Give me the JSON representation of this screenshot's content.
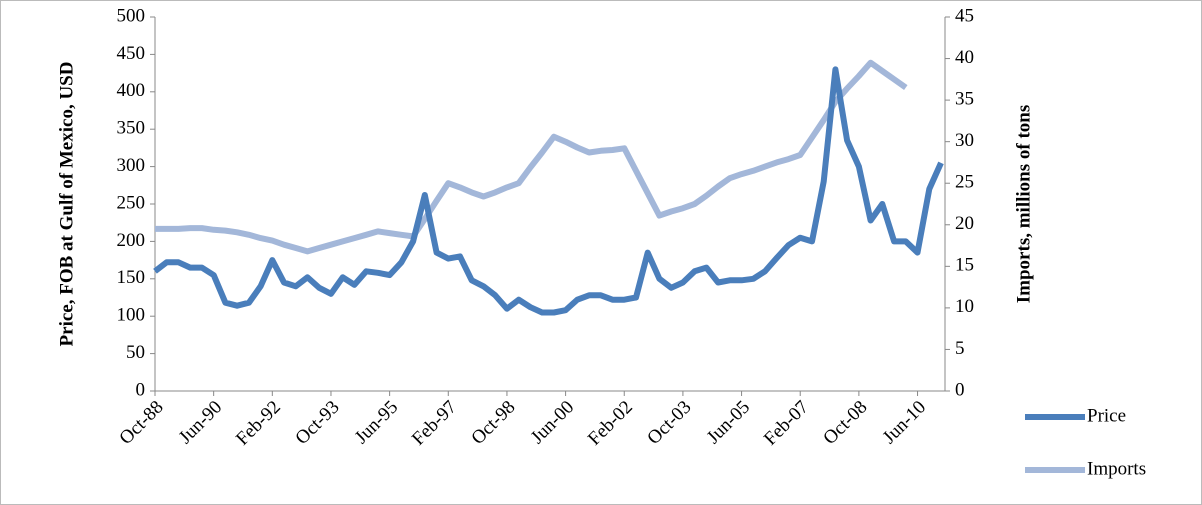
{
  "chart_data": {
    "type": "line",
    "y_label": "Price, FOB at Gulf of Mexico, USD",
    "y2_label": "Imports, millions of tons",
    "categories": [
      "Oct-88",
      null,
      null,
      null,
      null,
      "Jun-90",
      null,
      null,
      null,
      null,
      "Feb-92",
      null,
      null,
      null,
      null,
      "Oct-93",
      null,
      null,
      null,
      null,
      "Jun-95",
      null,
      null,
      null,
      null,
      "Feb-97",
      null,
      null,
      null,
      null,
      "Oct-98",
      null,
      null,
      null,
      null,
      "Jun-00",
      null,
      null,
      null,
      null,
      "Feb-02",
      null,
      null,
      null,
      null,
      "Oct-03",
      null,
      null,
      null,
      null,
      "Jun-05",
      null,
      null,
      null,
      null,
      "Feb-07",
      null,
      null,
      null,
      null,
      "Oct-08",
      null,
      null,
      null,
      null,
      "Jun-10",
      null,
      null
    ],
    "series": [
      {
        "name": "Price",
        "color": "#4a7ebb",
        "values": [
          160,
          172,
          172,
          165,
          165,
          155,
          118,
          114,
          118,
          140,
          175,
          145,
          140,
          152,
          138,
          130,
          152,
          142,
          160,
          158,
          155,
          172,
          200,
          262,
          185,
          177,
          180,
          148,
          140,
          128,
          110,
          122,
          112,
          105,
          105,
          108,
          122,
          128,
          128,
          122,
          122,
          125,
          185,
          150,
          138,
          145,
          160,
          165,
          145,
          148,
          148,
          150,
          160,
          178,
          195,
          205,
          200,
          280,
          430,
          335,
          300,
          228,
          250,
          200,
          200,
          185,
          270,
          305
        ]
      },
      {
        "name": "Imports",
        "color": "#a3b7d9",
        "axis": "y2",
        "values": [
          19.5,
          19.5,
          19.5,
          19.6,
          19.6,
          19.4,
          19.3,
          19.1,
          18.8,
          18.4,
          18.1,
          17.6,
          17.2,
          16.8,
          17.2,
          17.6,
          18.0,
          18.4,
          18.8,
          19.2,
          19.0,
          18.8,
          18.6,
          20.7,
          22.9,
          25.0,
          24.5,
          23.9,
          23.4,
          23.9,
          24.5,
          25.0,
          26.9,
          28.7,
          30.6,
          30.0,
          29.3,
          28.7,
          28.9,
          29.0,
          29.2,
          26.5,
          23.8,
          21.1,
          21.6,
          22.0,
          22.5,
          23.5,
          24.6,
          25.6,
          26.1,
          26.5,
          27.0,
          27.5,
          27.9,
          28.4,
          30.5,
          32.6,
          34.8,
          36.4,
          37.9,
          39.5,
          38.5,
          37.5,
          36.5,
          null,
          null,
          null
        ]
      }
    ],
    "ylim": [
      0,
      500
    ],
    "yticks": [
      0,
      50,
      100,
      150,
      200,
      250,
      300,
      350,
      400,
      450,
      500
    ],
    "y2lim": [
      0,
      45
    ],
    "y2ticks": [
      0,
      5,
      10,
      15,
      20,
      25,
      30,
      35,
      40,
      45
    ],
    "legend": "right",
    "grid": false
  }
}
